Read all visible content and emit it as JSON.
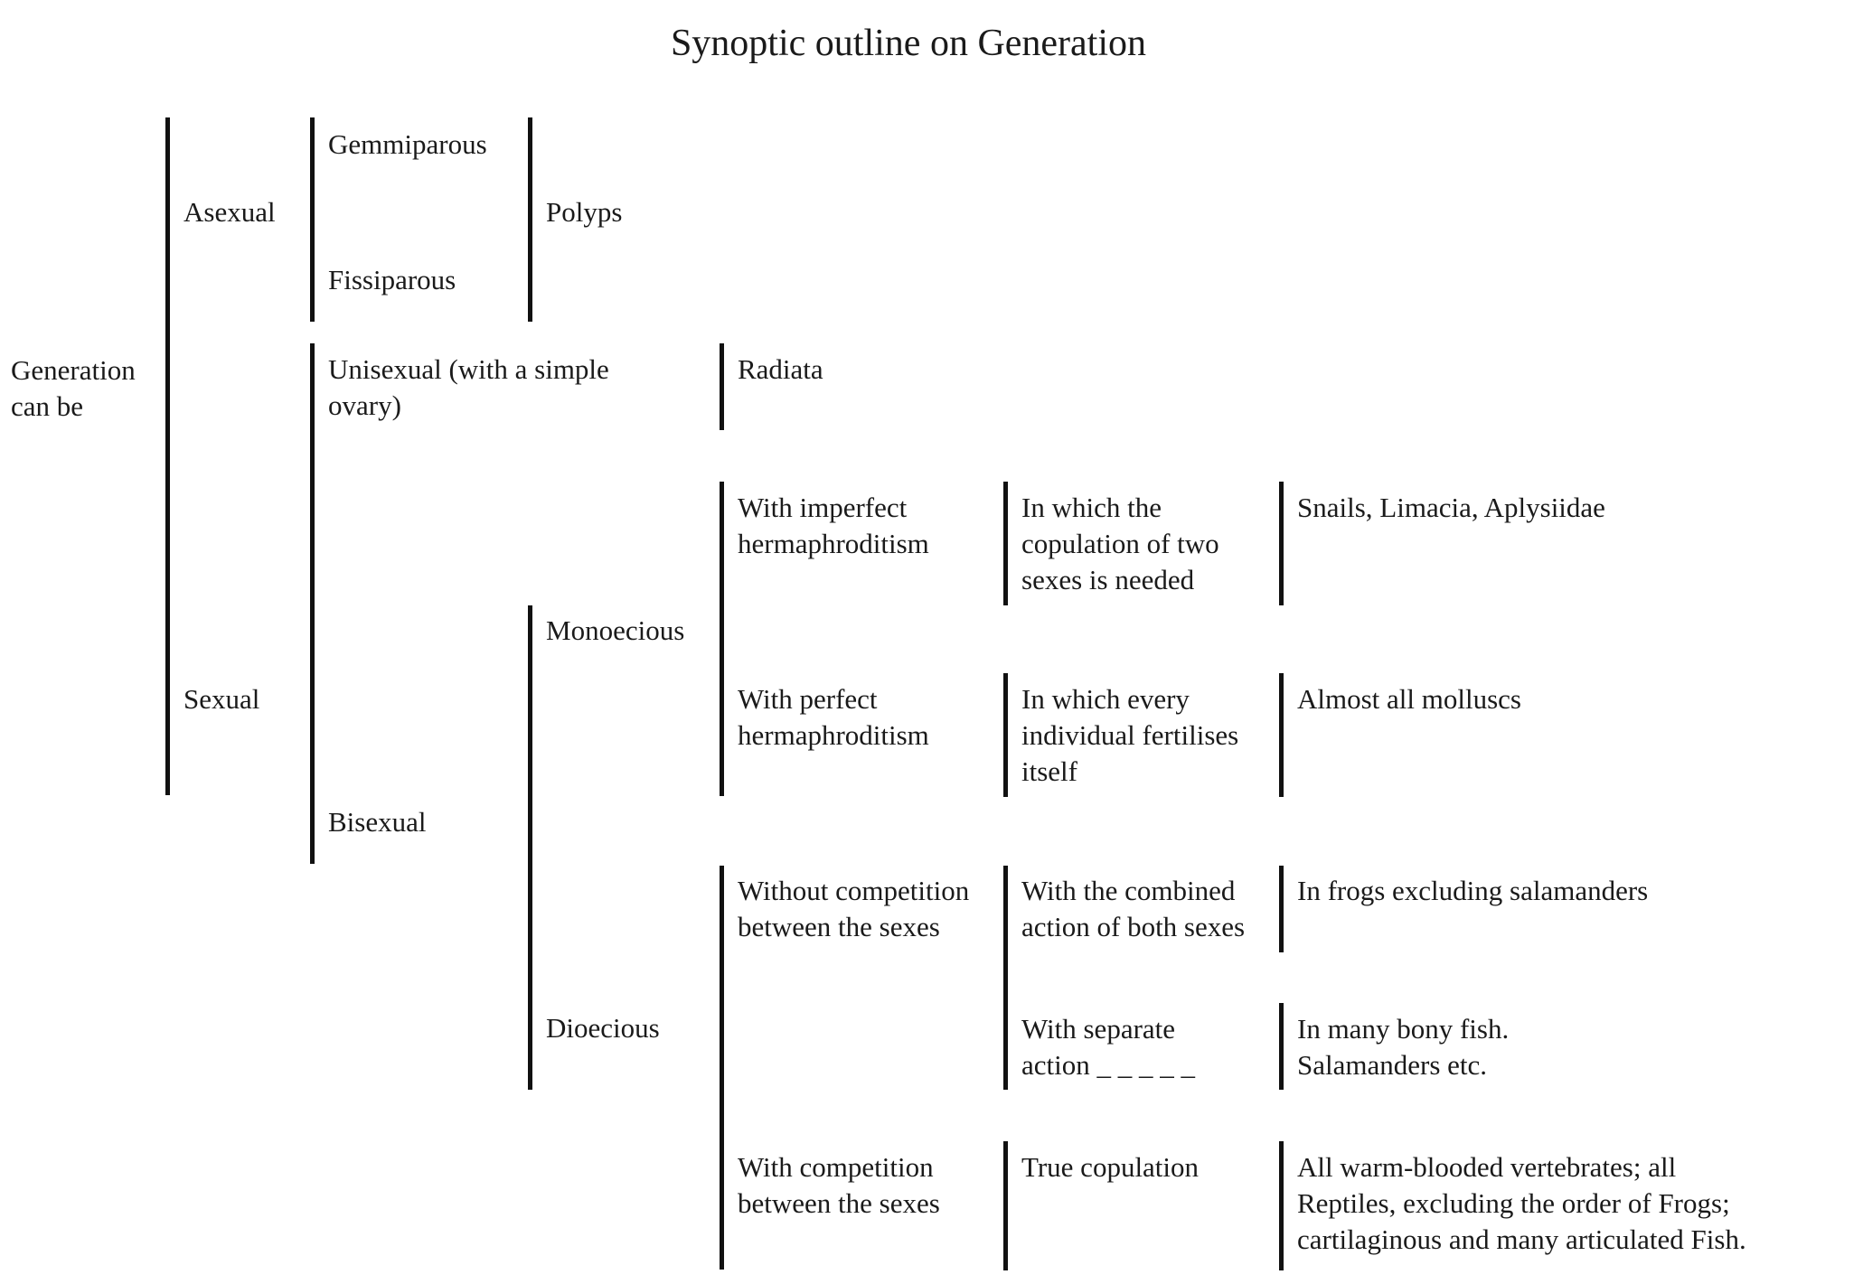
{
  "title": "Synoptic outline on Generation",
  "nodes": {
    "root": [
      "Generation",
      "can be"
    ],
    "asexual": "Asexual",
    "sexual": "Sexual",
    "gemmiparous": "Gemmiparous",
    "fissiparous": "Fissiparous",
    "polyps": "Polyps",
    "unisexual": [
      "Unisexual (with a simple",
      "ovary)"
    ],
    "radiata": "Radiata",
    "bisexual": "Bisexual",
    "monoecious": "Monoecious",
    "dioecious": "Dioecious",
    "imperfect": [
      "With imperfect",
      "hermaphroditism"
    ],
    "imperfect_desc": [
      "In which the",
      "copulation of two",
      "sexes is needed"
    ],
    "imperfect_ex": "Snails, Limacia, Aplysiidae",
    "perfect": [
      "With perfect",
      "hermaphroditism"
    ],
    "perfect_desc": [
      "In which every",
      "individual fertilises",
      "itself"
    ],
    "perfect_ex": "Almost all molluscs",
    "without_comp": [
      "Without competition",
      "between the sexes"
    ],
    "combined": [
      "With the combined",
      "action of both sexes"
    ],
    "combined_ex": "In frogs excluding salamanders",
    "separate": [
      "With separate",
      "action _ _ _ _ _"
    ],
    "separate_ex": [
      "In many bony fish.",
      "Salamanders etc."
    ],
    "with_comp": [
      "With competition",
      "between the sexes"
    ],
    "true_cop": "True copulation",
    "true_cop_ex": [
      "All warm-blooded vertebrates; all",
      "Reptiles, excluding the order of Frogs;",
      "cartilaginous and many articulated Fish."
    ]
  }
}
